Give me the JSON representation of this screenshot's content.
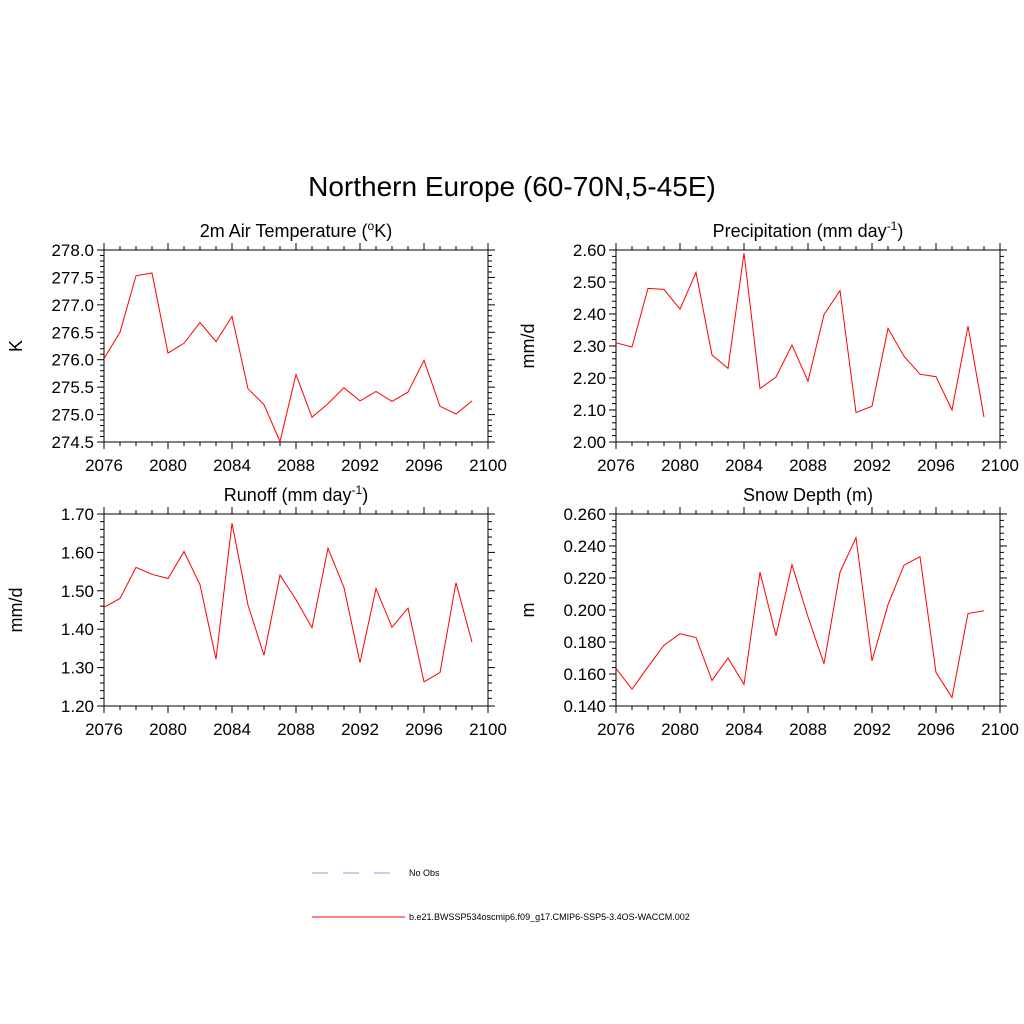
{
  "figure": {
    "title": "Northern Europe (60-70N,5-45E)"
  },
  "chart_data": [
    {
      "type": "line",
      "title": "2m Air Temperature (",
      "title_sup": "o",
      "title_after": "K)",
      "ylabel": "K",
      "xlabel": "",
      "xlim": [
        2076,
        2100
      ],
      "xticks": [
        2076,
        2080,
        2084,
        2088,
        2092,
        2096,
        2100
      ],
      "ylim": [
        274.5,
        278.0
      ],
      "yticks": [
        "274.5",
        "275.0",
        "275.5",
        "276.0",
        "276.5",
        "277.0",
        "277.5",
        "278.0"
      ],
      "x": [
        2076,
        2077,
        2078,
        2079,
        2080,
        2081,
        2082,
        2083,
        2084,
        2085,
        2086,
        2087,
        2088,
        2089,
        2090,
        2091,
        2092,
        2093,
        2094,
        2095,
        2096,
        2097,
        2098,
        2099
      ],
      "series": [
        {
          "values": [
            276.02,
            276.5,
            277.53,
            277.58,
            276.12,
            276.3,
            276.68,
            276.33,
            276.79,
            275.47,
            275.18,
            274.51,
            275.73,
            274.95,
            275.2,
            275.49,
            275.25,
            275.42,
            275.24,
            275.41,
            275.99,
            275.15,
            275.01,
            275.25
          ]
        }
      ]
    },
    {
      "type": "line",
      "title": "Precipitation (mm day",
      "title_sup": "-1",
      "title_after": ")",
      "ylabel": "mm/d",
      "xlabel": "",
      "xlim": [
        2076,
        2100
      ],
      "xticks": [
        2076,
        2080,
        2084,
        2088,
        2092,
        2096,
        2100
      ],
      "ylim": [
        2.0,
        2.6
      ],
      "yticks": [
        "2.00",
        "2.10",
        "2.20",
        "2.30",
        "2.40",
        "2.50",
        "2.60"
      ],
      "x": [
        2076,
        2077,
        2078,
        2079,
        2080,
        2081,
        2082,
        2083,
        2084,
        2085,
        2086,
        2087,
        2088,
        2089,
        2090,
        2091,
        2092,
        2093,
        2094,
        2095,
        2096,
        2097,
        2098,
        2099
      ],
      "series": [
        {
          "values": [
            2.31,
            2.297,
            2.48,
            2.477,
            2.415,
            2.53,
            2.272,
            2.23,
            2.59,
            2.167,
            2.203,
            2.303,
            2.19,
            2.398,
            2.473,
            2.092,
            2.112,
            2.355,
            2.268,
            2.212,
            2.204,
            2.1,
            2.362,
            2.078
          ]
        }
      ]
    },
    {
      "type": "line",
      "title": "Runoff (mm day",
      "title_sup": "-1",
      "title_after": ")",
      "ylabel": "mm/d",
      "xlabel": "",
      "xlim": [
        2076,
        2100
      ],
      "xticks": [
        2076,
        2080,
        2084,
        2088,
        2092,
        2096,
        2100
      ],
      "ylim": [
        1.2,
        1.7
      ],
      "yticks": [
        "1.20",
        "1.30",
        "1.40",
        "1.50",
        "1.60",
        "1.70"
      ],
      "x": [
        2076,
        2077,
        2078,
        2079,
        2080,
        2081,
        2082,
        2083,
        2084,
        2085,
        2086,
        2087,
        2088,
        2089,
        2090,
        2091,
        2092,
        2093,
        2094,
        2095,
        2096,
        2097,
        2098,
        2099
      ],
      "series": [
        {
          "values": [
            1.457,
            1.48,
            1.561,
            1.543,
            1.532,
            1.602,
            1.516,
            1.322,
            1.676,
            1.463,
            1.332,
            1.541,
            1.477,
            1.404,
            1.611,
            1.508,
            1.313,
            1.506,
            1.405,
            1.455,
            1.263,
            1.287,
            1.521,
            1.366
          ]
        }
      ]
    },
    {
      "type": "line",
      "title": "Snow Depth (m)",
      "title_sup": "",
      "title_after": "",
      "ylabel": "m",
      "xlabel": "",
      "xlim": [
        2076,
        2100
      ],
      "xticks": [
        2076,
        2080,
        2084,
        2088,
        2092,
        2096,
        2100
      ],
      "ylim": [
        0.14,
        0.26
      ],
      "yticks": [
        "0.140",
        "0.160",
        "0.180",
        "0.200",
        "0.220",
        "0.240",
        "0.260"
      ],
      "x": [
        2076,
        2077,
        2078,
        2079,
        2080,
        2081,
        2082,
        2083,
        2084,
        2085,
        2086,
        2087,
        2088,
        2089,
        2090,
        2091,
        2092,
        2093,
        2094,
        2095,
        2096,
        2097,
        2098,
        2099
      ],
      "series": [
        {
          "values": [
            0.1635,
            0.1505,
            0.1645,
            0.178,
            0.1852,
            0.1828,
            0.156,
            0.17,
            0.1535,
            0.2236,
            0.1838,
            0.2283,
            0.1957,
            0.1664,
            0.2236,
            0.2452,
            0.1682,
            0.2034,
            0.228,
            0.2333,
            0.161,
            0.1453,
            0.1978,
            0.1995
          ]
        }
      ]
    }
  ],
  "legend": {
    "entries": [
      {
        "label": "No Obs",
        "color": "#9999dd",
        "style": "dashed"
      },
      {
        "label": "b.e21.BWSSP534oscmip6.f09_g17.CMIP6-SSP5-3.4OS-WACCM.002",
        "color": "#ff0000",
        "style": "solid"
      }
    ]
  },
  "colors": {
    "series": "#ff0000",
    "axes": "#000000"
  }
}
